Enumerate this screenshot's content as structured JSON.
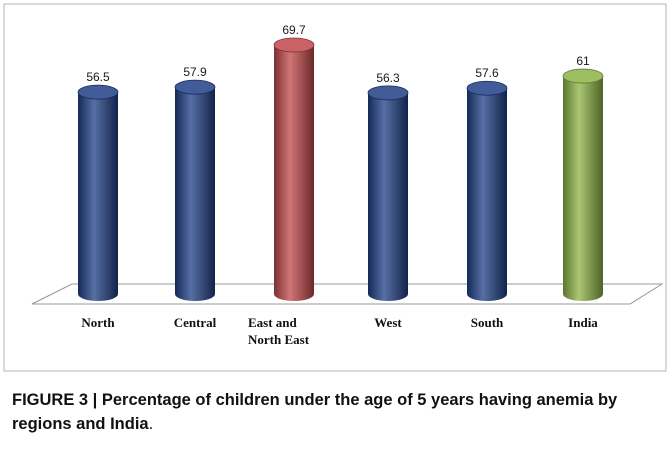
{
  "chart_data": {
    "type": "bar",
    "categories": [
      "North",
      "Central",
      "East and North East",
      "West",
      "South",
      "India"
    ],
    "category_lines": [
      [
        "North"
      ],
      [
        "Central"
      ],
      [
        "East and",
        "North East"
      ],
      [
        "West"
      ],
      [
        "South"
      ],
      [
        "India"
      ]
    ],
    "values": [
      56.5,
      57.9,
      69.7,
      56.3,
      57.6,
      61
    ],
    "value_labels": [
      "56.5",
      "57.9",
      "69.7",
      "56.3",
      "57.6",
      "61"
    ],
    "ylim": [
      0,
      70
    ],
    "grid": false,
    "colors": [
      "#1f3f86",
      "#1f3f86",
      "#c0484a",
      "#1f3f86",
      "#1f3f86",
      "#8db445"
    ]
  },
  "caption": {
    "text": "FIGURE 3 | Percentage of children under the age of 5 years having anemia by regions and India",
    "period": "."
  }
}
